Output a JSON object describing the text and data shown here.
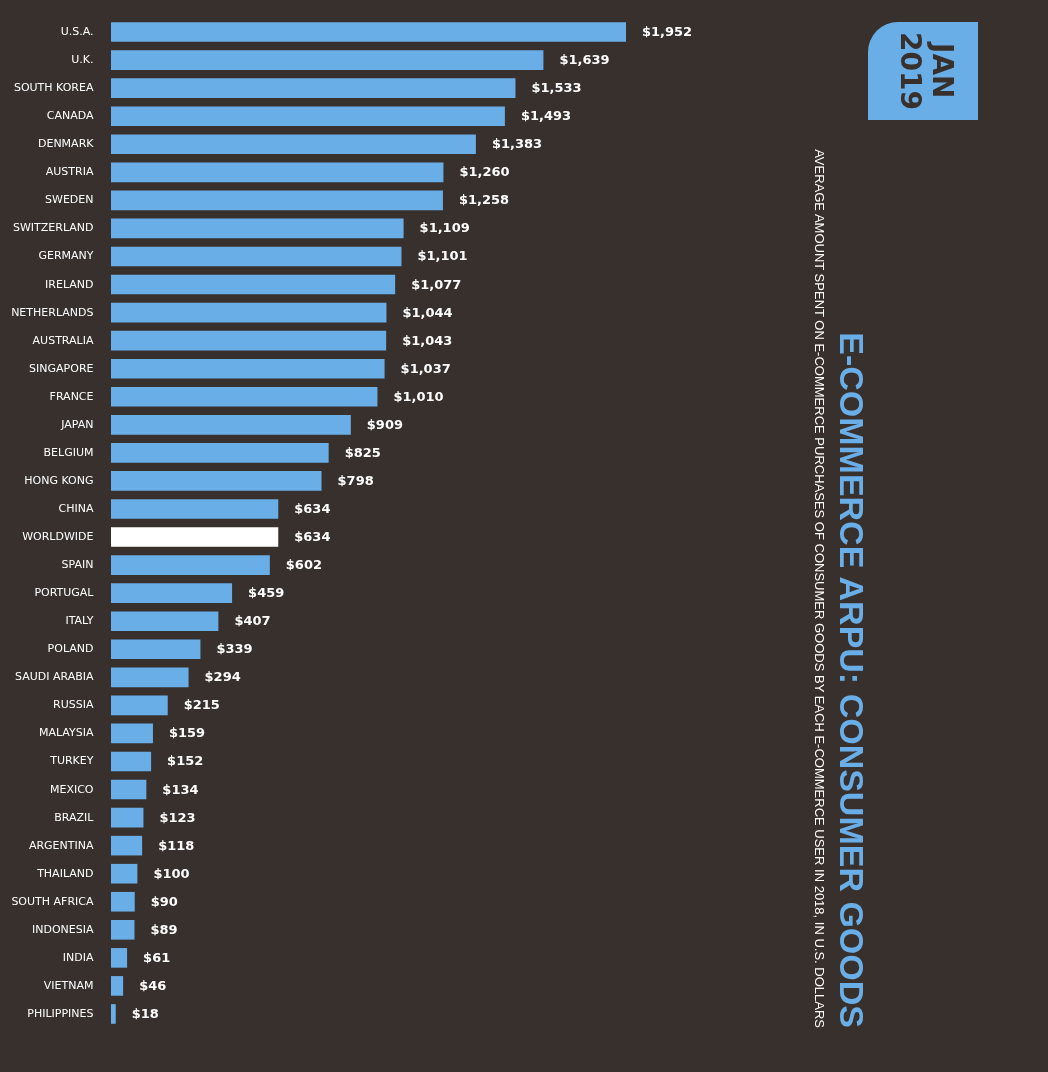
{
  "chart_data": {
    "type": "bar",
    "orientation": "horizontal",
    "title": "E-COMMERCE ARPU: CONSUMER GOODS",
    "subtitle": "AVERAGE AMOUNT SPENT ON E-COMMERCE PURCHASES OF CONSUMER GOODS BY EACH E-COMMERCE USER IN 2018, IN U.S. DOLLARS",
    "annotations": [
      "JAN 2019"
    ],
    "categories": [
      "U.S.A.",
      "U.K.",
      "SOUTH KOREA",
      "CANADA",
      "DENMARK",
      "AUSTRIA",
      "SWEDEN",
      "SWITZERLAND",
      "GERMANY",
      "IRELAND",
      "NETHERLANDS",
      "AUSTRALIA",
      "SINGAPORE",
      "FRANCE",
      "JAPAN",
      "BELGIUM",
      "HONG KONG",
      "CHINA",
      "WORLDWIDE",
      "SPAIN",
      "PORTUGAL",
      "ITALY",
      "POLAND",
      "SAUDI ARABIA",
      "RUSSIA",
      "MALAYSIA",
      "TURKEY",
      "MEXICO",
      "BRAZIL",
      "ARGENTINA",
      "THAILAND",
      "SOUTH AFRICA",
      "INDONESIA",
      "INDIA",
      "VIETNAM",
      "PHILIPPINES"
    ],
    "values": [
      1952,
      1639,
      1533,
      1493,
      1383,
      1260,
      1258,
      1109,
      1101,
      1077,
      1044,
      1043,
      1037,
      1010,
      909,
      825,
      798,
      634,
      634,
      602,
      459,
      407,
      339,
      294,
      215,
      159,
      152,
      134,
      123,
      118,
      100,
      90,
      89,
      61,
      46,
      18
    ],
    "value_labels": [
      "$1,952",
      "$1,639",
      "$1,533",
      "$1,493",
      "$1,383",
      "$1,260",
      "$1,258",
      "$1,109",
      "$1,101",
      "$1,077",
      "$1,044",
      "$1,043",
      "$1,037",
      "$1,010",
      "$909",
      "$825",
      "$798",
      "$634",
      "$634",
      "$602",
      "$459",
      "$407",
      "$339",
      "$294",
      "$215",
      "$159",
      "$152",
      "$134",
      "$123",
      "$118",
      "$100",
      "$90",
      "$89",
      "$61",
      "$46",
      "$18"
    ],
    "colors": [
      "#6aaee8",
      "#6aaee8",
      "#6aaee8",
      "#6aaee8",
      "#6aaee8",
      "#6aaee8",
      "#6aaee8",
      "#6aaee8",
      "#6aaee8",
      "#6aaee8",
      "#6aaee8",
      "#6aaee8",
      "#6aaee8",
      "#6aaee8",
      "#6aaee8",
      "#6aaee8",
      "#6aaee8",
      "#6aaee8",
      "#ffffff",
      "#6aaee8",
      "#6aaee8",
      "#6aaee8",
      "#6aaee8",
      "#6aaee8",
      "#6aaee8",
      "#6aaee8",
      "#6aaee8",
      "#6aaee8",
      "#6aaee8",
      "#6aaee8",
      "#6aaee8",
      "#6aaee8",
      "#6aaee8",
      "#6aaee8",
      "#6aaee8",
      "#6aaee8"
    ],
    "tick_labels": "y",
    "grid": false
  }
}
